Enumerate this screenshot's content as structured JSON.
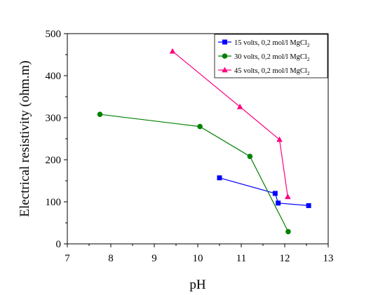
{
  "chart_data": {
    "type": "line",
    "title": "",
    "xlabel": "pH",
    "ylabel": "Electrical resistivity (ohm.m)",
    "xlim": [
      7,
      13
    ],
    "ylim": [
      0,
      500
    ],
    "x_ticks": [
      7,
      8,
      9,
      10,
      11,
      12,
      13
    ],
    "y_ticks": [
      0,
      100,
      200,
      300,
      400,
      500
    ],
    "x_tick_labels": [
      "7",
      "8",
      "9",
      "10",
      "11",
      "12",
      "13"
    ],
    "y_tick_labels": [
      "0",
      "100",
      "200",
      "300",
      "400",
      "500"
    ],
    "grid": false,
    "legend_position": "top-right",
    "series": [
      {
        "name": "15 volts, 0,2 mol/l MgCl",
        "name_subscript": "2",
        "color": "#0000ff",
        "marker": "square",
        "x": [
          10.5,
          11.78,
          11.85,
          12.55
        ],
        "y": [
          157,
          120,
          97,
          91
        ]
      },
      {
        "name": "30 volts, 0,2 mol/l MgCl",
        "name_subscript": "2",
        "color": "#008000",
        "marker": "circle",
        "x": [
          7.75,
          10.05,
          11.2,
          12.08
        ],
        "y": [
          308,
          279,
          208,
          29
        ]
      },
      {
        "name": "45 volts, 0,2 mol/l MgCl",
        "name_subscript": "2",
        "color": "#ff0080",
        "marker": "triangle",
        "x": [
          9.42,
          10.97,
          11.88,
          12.07
        ],
        "y": [
          458,
          326,
          248,
          112
        ]
      }
    ]
  }
}
